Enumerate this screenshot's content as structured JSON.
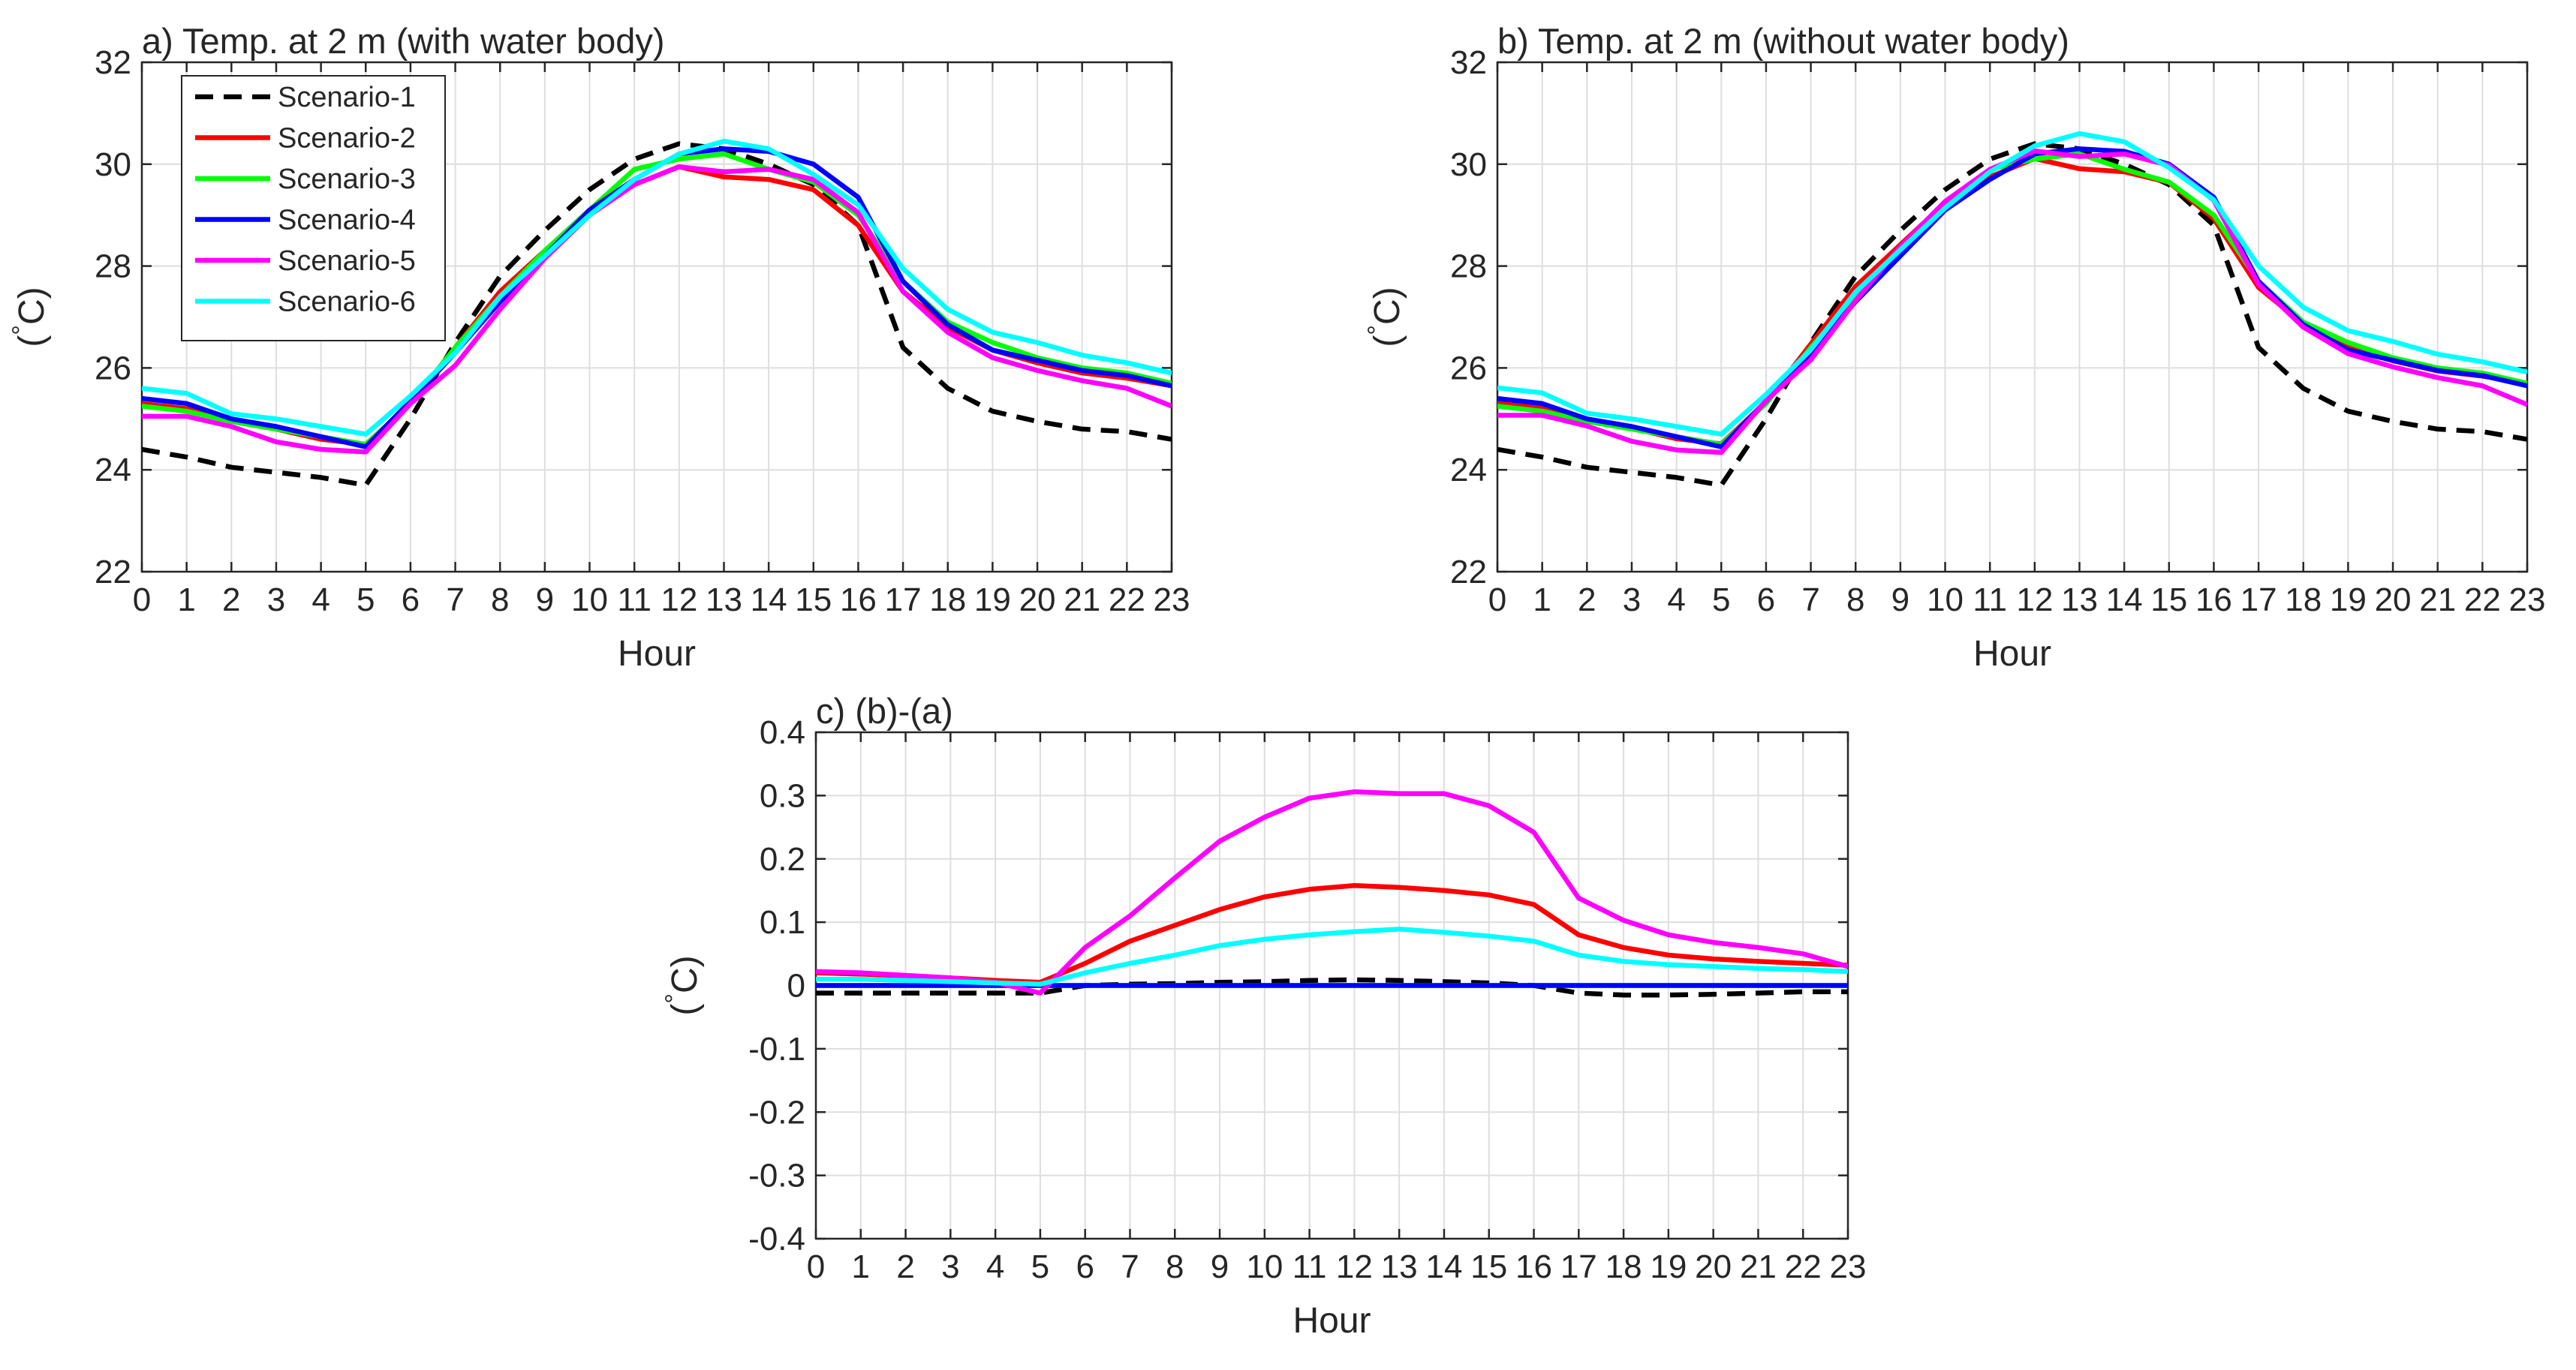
{
  "chart_data": [
    {
      "type": "line",
      "title": "a) Temp. at 2 m (with water body)",
      "xlabel": "Hour",
      "ylabel": "(°C)",
      "ylabel_degree": "°",
      "ylabel_unit": "C",
      "xlim": [
        0,
        23
      ],
      "ylim": [
        22,
        32
      ],
      "xticks": [
        "0",
        "1",
        "2",
        "3",
        "4",
        "5",
        "6",
        "7",
        "8",
        "9",
        "10",
        "11",
        "12",
        "13",
        "14",
        "15",
        "16",
        "17",
        "18",
        "19",
        "20",
        "21",
        "22",
        "23"
      ],
      "yticks": [
        "22",
        "24",
        "26",
        "28",
        "30",
        "32"
      ],
      "grid": true,
      "legend": "top-left",
      "x": [
        0,
        1,
        2,
        3,
        4,
        5,
        6,
        7,
        8,
        9,
        10,
        11,
        12,
        13,
        14,
        15,
        16,
        17,
        18,
        19,
        20,
        21,
        22,
        23
      ],
      "series": [
        {
          "name": "Scenario-1",
          "color": "#000000",
          "dash": true,
          "values": [
            24.4,
            24.25,
            24.05,
            23.95,
            23.85,
            23.7,
            25.0,
            26.5,
            27.8,
            28.7,
            29.5,
            30.1,
            30.4,
            30.3,
            30.0,
            29.6,
            28.8,
            26.4,
            25.6,
            25.15,
            24.95,
            24.8,
            24.75,
            24.6
          ]
        },
        {
          "name": "Scenario-2",
          "color": "#ff0000",
          "dash": false,
          "values": [
            25.3,
            25.2,
            24.95,
            24.8,
            24.6,
            24.5,
            25.3,
            26.4,
            27.5,
            28.3,
            29.1,
            29.6,
            29.95,
            29.75,
            29.7,
            29.5,
            28.8,
            27.5,
            26.8,
            26.35,
            26.1,
            25.9,
            25.8,
            25.65
          ]
        },
        {
          "name": "Scenario-3",
          "color": "#00ff00",
          "dash": false,
          "values": [
            25.25,
            25.15,
            24.95,
            24.8,
            24.65,
            24.5,
            25.3,
            26.4,
            27.4,
            28.3,
            29.1,
            29.9,
            30.1,
            30.2,
            29.9,
            29.65,
            29.0,
            27.7,
            26.9,
            26.5,
            26.2,
            26.0,
            25.9,
            25.7
          ]
        },
        {
          "name": "Scenario-4",
          "color": "#0000ff",
          "dash": false,
          "values": [
            25.4,
            25.3,
            25.0,
            24.85,
            24.65,
            24.45,
            25.35,
            26.3,
            27.3,
            28.2,
            29.1,
            29.7,
            30.2,
            30.3,
            30.25,
            30.0,
            29.35,
            27.7,
            26.85,
            26.35,
            26.15,
            25.95,
            25.85,
            25.65
          ]
        },
        {
          "name": "Scenario-5",
          "color": "#ff00ff",
          "dash": false,
          "values": [
            25.05,
            25.05,
            24.85,
            24.55,
            24.4,
            24.35,
            25.3,
            26.05,
            27.15,
            28.15,
            29.0,
            29.6,
            29.95,
            29.85,
            29.9,
            29.7,
            29.05,
            27.5,
            26.7,
            26.2,
            25.95,
            25.75,
            25.6,
            25.25
          ]
        },
        {
          "name": "Scenario-6",
          "color": "#00ffff",
          "dash": false,
          "values": [
            25.6,
            25.5,
            25.1,
            25.0,
            24.85,
            24.7,
            25.45,
            26.3,
            27.4,
            28.2,
            29.0,
            29.7,
            30.2,
            30.45,
            30.3,
            29.8,
            29.2,
            27.95,
            27.15,
            26.7,
            26.5,
            26.25,
            26.1,
            25.9
          ]
        }
      ]
    },
    {
      "type": "line",
      "title": "b) Temp. at 2 m (without water body)",
      "xlabel": "Hour",
      "ylabel": "(°C)",
      "ylabel_degree": "°",
      "ylabel_unit": "C",
      "xlim": [
        0,
        23
      ],
      "ylim": [
        22,
        32
      ],
      "xticks": [
        "0",
        "1",
        "2",
        "3",
        "4",
        "5",
        "6",
        "7",
        "8",
        "9",
        "10",
        "11",
        "12",
        "13",
        "14",
        "15",
        "16",
        "17",
        "18",
        "19",
        "20",
        "21",
        "22",
        "23"
      ],
      "yticks": [
        "22",
        "24",
        "26",
        "28",
        "30",
        "32"
      ],
      "grid": true,
      "legend": "none",
      "x": [
        0,
        1,
        2,
        3,
        4,
        5,
        6,
        7,
        8,
        9,
        10,
        11,
        12,
        13,
        14,
        15,
        16,
        17,
        18,
        19,
        20,
        21,
        22,
        23
      ],
      "series": [
        {
          "name": "Scenario-1",
          "color": "#000000",
          "dash": true,
          "values": [
            24.4,
            24.25,
            24.05,
            23.95,
            23.85,
            23.7,
            25.0,
            26.5,
            27.8,
            28.7,
            29.5,
            30.1,
            30.4,
            30.3,
            30.0,
            29.6,
            28.8,
            26.4,
            25.6,
            25.15,
            24.95,
            24.8,
            24.75,
            24.6
          ]
        },
        {
          "name": "Scenario-2",
          "color": "#ff0000",
          "dash": false,
          "values": [
            25.32,
            25.22,
            24.97,
            24.82,
            24.61,
            24.51,
            25.33,
            26.47,
            27.6,
            28.42,
            29.24,
            29.75,
            30.11,
            29.91,
            29.85,
            29.64,
            28.93,
            27.58,
            26.86,
            26.4,
            26.14,
            25.94,
            25.84,
            25.69
          ]
        },
        {
          "name": "Scenario-3",
          "color": "#00ff00",
          "dash": false,
          "values": [
            25.25,
            25.15,
            24.95,
            24.8,
            24.65,
            24.5,
            25.3,
            26.4,
            27.4,
            28.3,
            29.1,
            29.9,
            30.1,
            30.2,
            29.9,
            29.65,
            29.0,
            27.7,
            26.9,
            26.5,
            26.2,
            26.0,
            25.9,
            25.7
          ]
        },
        {
          "name": "Scenario-4",
          "color": "#0000ff",
          "dash": false,
          "values": [
            25.4,
            25.3,
            25.0,
            24.85,
            24.65,
            24.45,
            25.35,
            26.3,
            27.3,
            28.2,
            29.1,
            29.7,
            30.2,
            30.3,
            30.25,
            30.0,
            29.35,
            27.7,
            26.85,
            26.35,
            26.15,
            25.95,
            25.85,
            25.65
          ]
        },
        {
          "name": "Scenario-5",
          "color": "#ff00ff",
          "dash": false,
          "values": [
            25.07,
            25.07,
            24.86,
            24.56,
            24.39,
            24.34,
            25.36,
            26.16,
            27.32,
            28.38,
            29.27,
            29.9,
            30.26,
            30.15,
            30.2,
            29.98,
            29.29,
            27.64,
            26.8,
            26.28,
            26.02,
            25.81,
            25.65,
            25.28
          ]
        },
        {
          "name": "Scenario-6",
          "color": "#00ffff",
          "dash": false,
          "values": [
            25.61,
            25.51,
            25.11,
            25.0,
            24.85,
            24.7,
            25.48,
            26.36,
            27.49,
            28.32,
            29.14,
            29.85,
            30.36,
            30.6,
            30.44,
            29.93,
            29.3,
            28.0,
            27.19,
            26.73,
            26.52,
            26.27,
            26.12,
            25.92
          ]
        }
      ]
    },
    {
      "type": "line",
      "title": "c) (b)-(a)",
      "xlabel": "Hour",
      "ylabel": "(°C)",
      "ylabel_degree": "°",
      "ylabel_unit": "C",
      "xlim": [
        0,
        23
      ],
      "ylim": [
        -0.4,
        0.4
      ],
      "xticks": [
        "0",
        "1",
        "2",
        "3",
        "4",
        "5",
        "6",
        "7",
        "8",
        "9",
        "10",
        "11",
        "12",
        "13",
        "14",
        "15",
        "16",
        "17",
        "18",
        "19",
        "20",
        "21",
        "22",
        "23"
      ],
      "yticks": [
        "-0.4",
        "-0.3",
        "-0.2",
        "-0.1",
        "0",
        "0.1",
        "0.2",
        "0.3",
        "0.4"
      ],
      "grid": true,
      "legend": "none",
      "x": [
        0,
        1,
        2,
        3,
        4,
        5,
        6,
        7,
        8,
        9,
        10,
        11,
        12,
        13,
        14,
        15,
        16,
        17,
        18,
        19,
        20,
        21,
        22,
        23
      ],
      "series": [
        {
          "name": "Scenario-1",
          "color": "#000000",
          "dash": true,
          "values": [
            -0.012,
            -0.012,
            -0.012,
            -0.012,
            -0.012,
            -0.012,
            0.0,
            0.002,
            0.003,
            0.005,
            0.006,
            0.008,
            0.009,
            0.008,
            0.006,
            0.004,
            0.0,
            -0.012,
            -0.015,
            -0.015,
            -0.014,
            -0.012,
            -0.01,
            -0.01
          ]
        },
        {
          "name": "Scenario-2",
          "color": "#ff0000",
          "dash": false,
          "values": [
            0.02,
            0.018,
            0.015,
            0.012,
            0.008,
            0.005,
            0.035,
            0.07,
            0.095,
            0.12,
            0.14,
            0.152,
            0.158,
            0.155,
            0.15,
            0.143,
            0.128,
            0.08,
            0.06,
            0.048,
            0.042,
            0.038,
            0.035,
            0.032
          ]
        },
        {
          "name": "Scenario-3",
          "color": "#00ff00",
          "dash": false,
          "values": [
            0.0,
            0.0,
            0.0,
            0.0,
            0.0,
            0.0,
            0.0,
            0.0,
            0.0,
            0.0,
            0.0,
            0.0,
            0.0,
            0.0,
            0.0,
            0.0,
            0.0,
            0.0,
            0.0,
            0.0,
            0.0,
            0.0,
            0.0,
            0.0
          ]
        },
        {
          "name": "Scenario-4",
          "color": "#0000ff",
          "dash": false,
          "values": [
            0.0,
            0.0,
            0.0,
            0.0,
            0.0,
            0.0,
            0.0,
            0.0,
            0.0,
            0.0,
            0.0,
            0.0,
            0.0,
            0.0,
            0.0,
            0.0,
            0.0,
            0.0,
            0.0,
            0.0,
            0.0,
            0.0,
            0.0,
            0.0
          ]
        },
        {
          "name": "Scenario-5",
          "color": "#ff00ff",
          "dash": false,
          "values": [
            0.022,
            0.02,
            0.016,
            0.012,
            0.005,
            -0.012,
            0.06,
            0.11,
            0.17,
            0.228,
            0.266,
            0.296,
            0.306,
            0.303,
            0.303,
            0.284,
            0.242,
            0.138,
            0.103,
            0.08,
            0.068,
            0.06,
            0.05,
            0.03
          ]
        },
        {
          "name": "Scenario-6",
          "color": "#00ffff",
          "dash": false,
          "values": [
            0.01,
            0.01,
            0.008,
            0.006,
            0.004,
            0.002,
            0.02,
            0.035,
            0.048,
            0.063,
            0.073,
            0.08,
            0.085,
            0.089,
            0.084,
            0.078,
            0.07,
            0.048,
            0.038,
            0.033,
            0.03,
            0.027,
            0.025,
            0.022
          ]
        }
      ]
    }
  ]
}
